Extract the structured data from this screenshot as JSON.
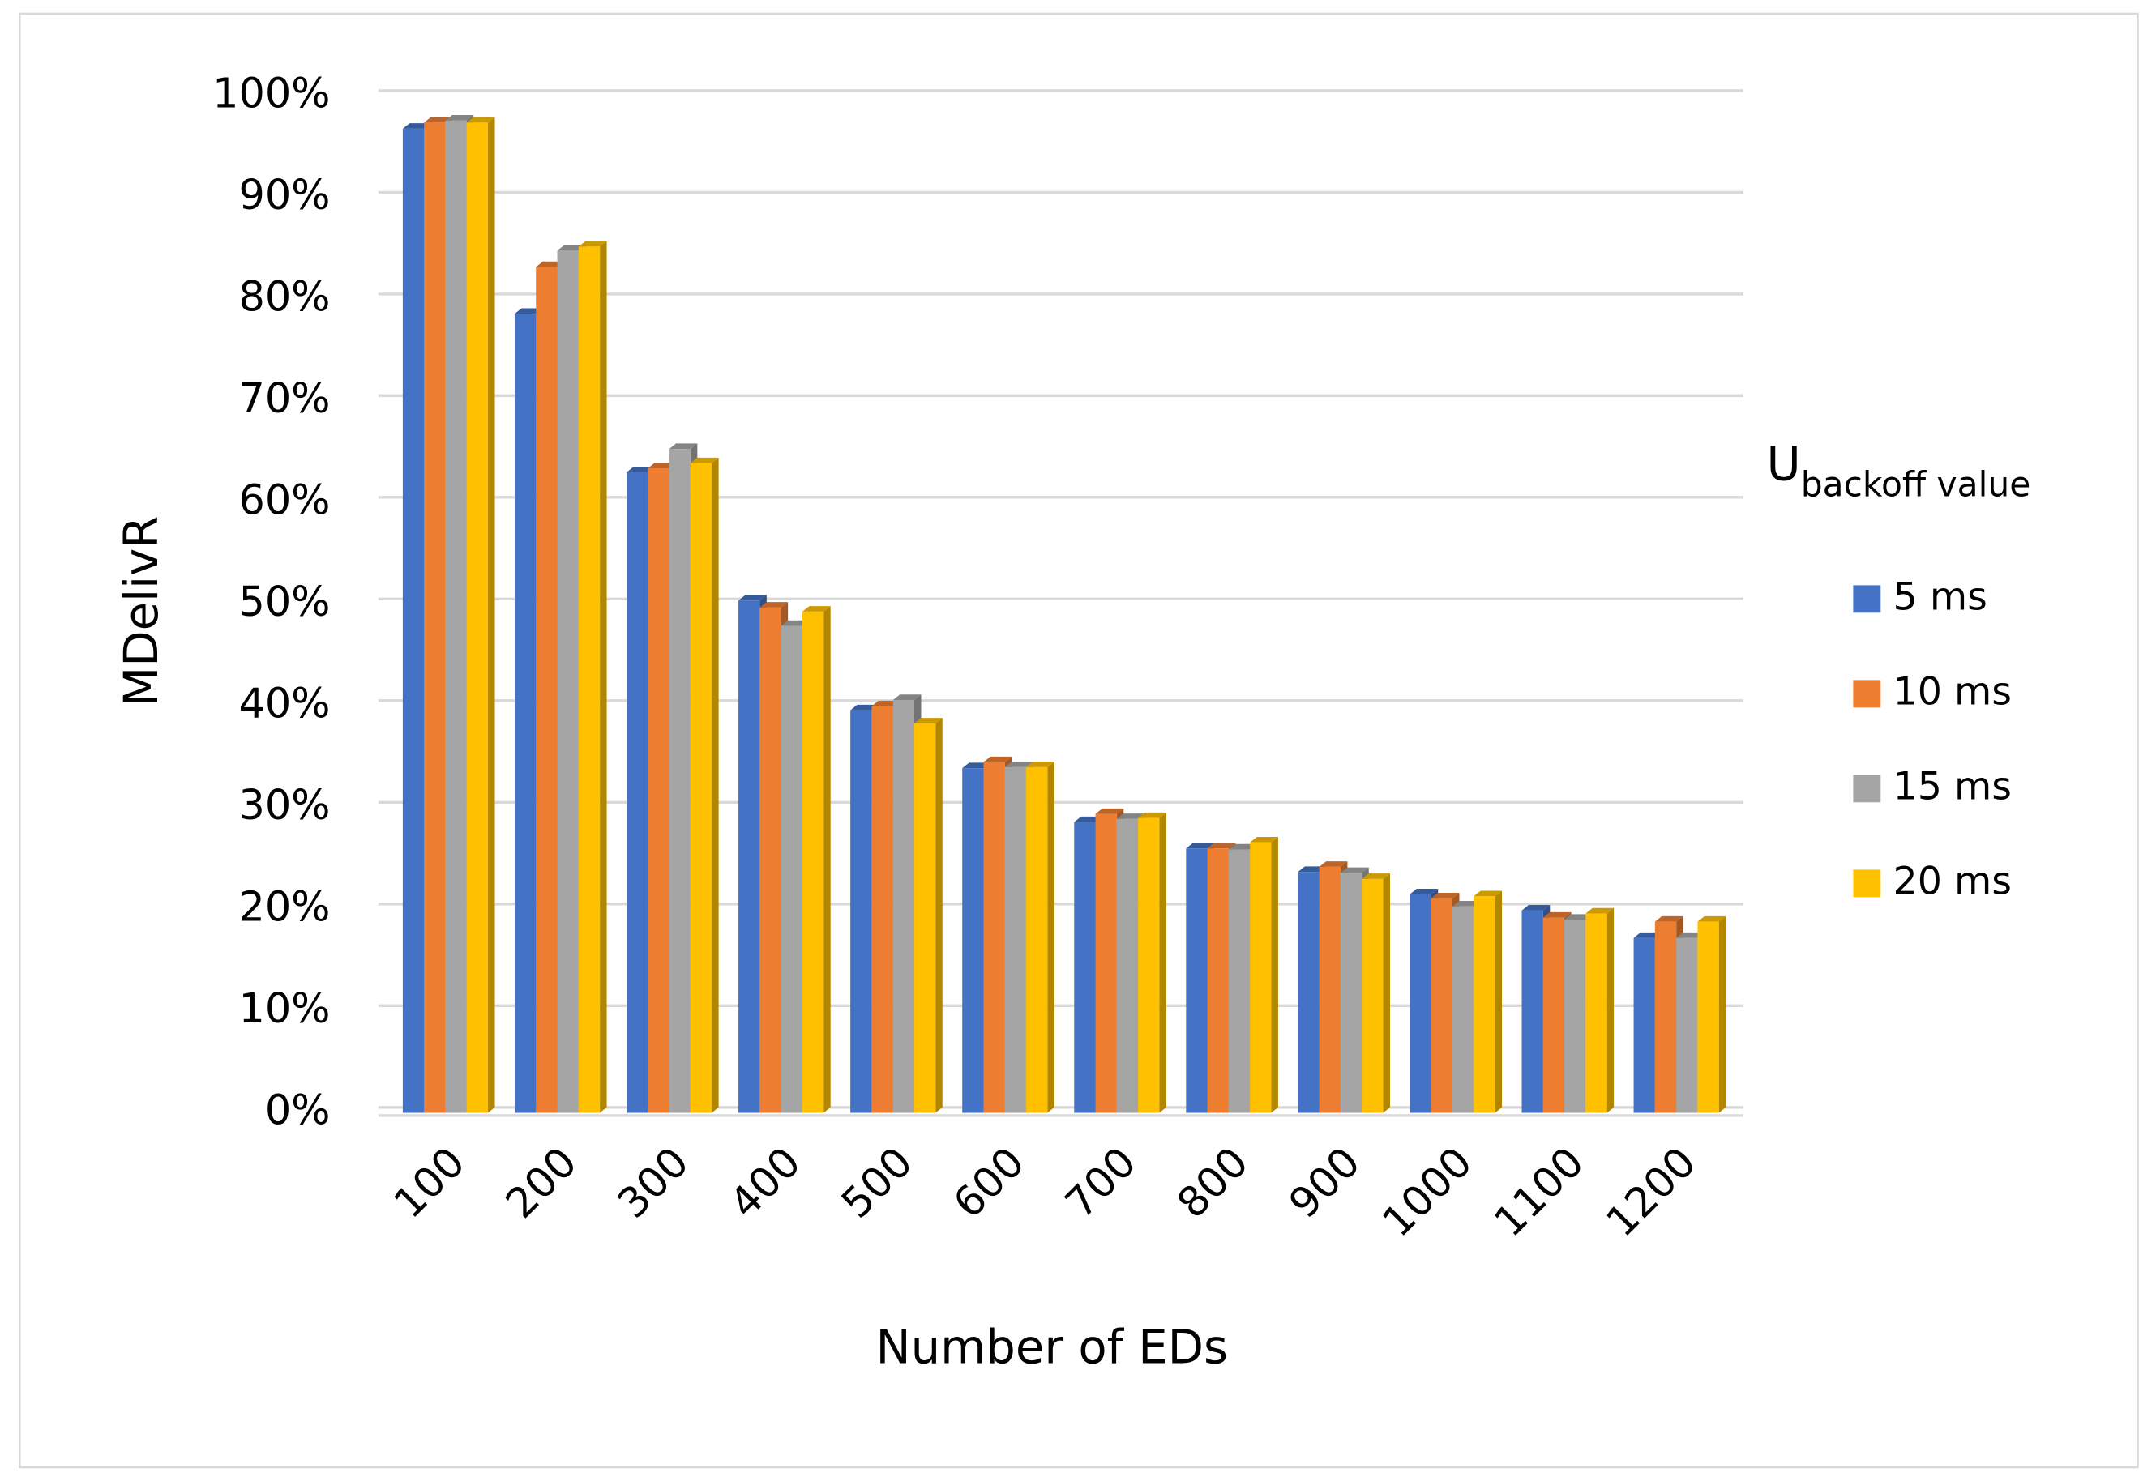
{
  "chart_data": {
    "type": "bar3d",
    "x_label": "Number of EDs",
    "y_label": "MDelivR",
    "legend_title": "U",
    "legend_title_subscript": "backoff value",
    "legend_position": "right",
    "grid": true,
    "categories": [
      "100",
      "200",
      "300",
      "400",
      "500",
      "600",
      "700",
      "800",
      "900",
      "1000",
      "1100",
      "1200"
    ],
    "series": [
      {
        "name": "5 ms",
        "color": "#4472c4",
        "values": [
          96.8,
          78.6,
          63.0,
          50.4,
          39.6,
          33.9,
          28.6,
          26.0,
          23.7,
          21.5,
          19.9,
          17.2
        ]
      },
      {
        "name": "10 ms",
        "color": "#ed7d31",
        "values": [
          97.4,
          83.2,
          63.4,
          49.7,
          40.0,
          34.5,
          29.4,
          26.0,
          24.2,
          21.1,
          19.2,
          18.8
        ]
      },
      {
        "name": "15 ms",
        "color": "#a5a5a5",
        "values": [
          97.6,
          84.8,
          65.3,
          47.9,
          40.6,
          34.0,
          28.9,
          25.9,
          23.6,
          20.3,
          19.0,
          17.2
        ]
      },
      {
        "name": "20 ms",
        "color": "#ffc000",
        "values": [
          97.4,
          85.2,
          63.9,
          49.3,
          38.3,
          34.0,
          29.0,
          26.6,
          23.0,
          21.3,
          19.6,
          18.8
        ]
      }
    ],
    "ylim": [
      0,
      100
    ],
    "yticks": [
      {
        "value": 0,
        "label": "0%"
      },
      {
        "value": 10,
        "label": "10%"
      },
      {
        "value": 20,
        "label": "20%"
      },
      {
        "value": 30,
        "label": "30%"
      },
      {
        "value": 40,
        "label": "40%"
      },
      {
        "value": 50,
        "label": "50%"
      },
      {
        "value": 60,
        "label": "60%"
      },
      {
        "value": 70,
        "label": "70%"
      },
      {
        "value": 80,
        "label": "80%"
      },
      {
        "value": 90,
        "label": "90%"
      },
      {
        "value": 100,
        "label": "100%"
      }
    ]
  }
}
